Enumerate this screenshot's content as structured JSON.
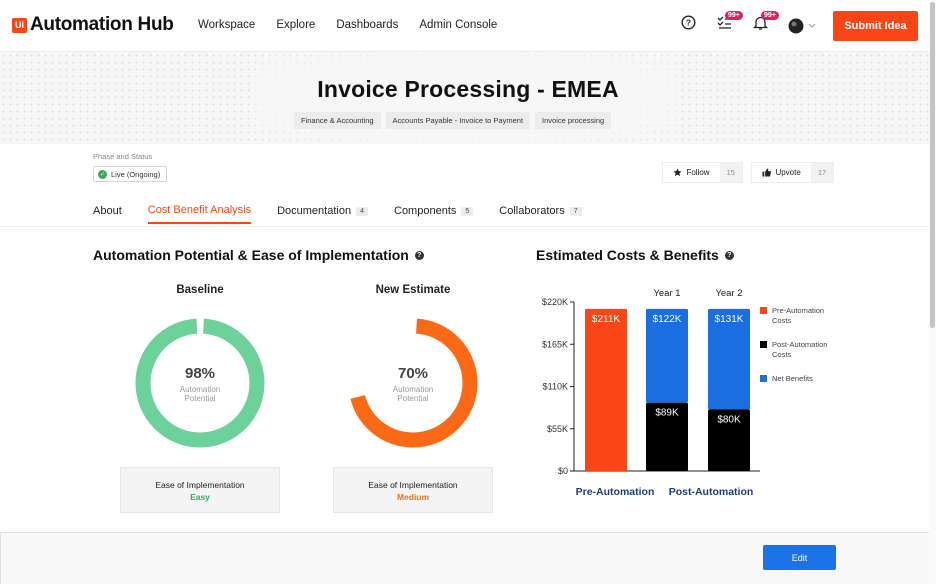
{
  "app": {
    "logo_badge": "Ui",
    "logo_text": "Automation Hub"
  },
  "nav": {
    "items": [
      "Workspace",
      "Explore",
      "Dashboards",
      "Admin Console"
    ]
  },
  "header_icons": {
    "tasks_badge": "99+",
    "notifications_badge": "99+"
  },
  "submit_label": "Submit Idea",
  "page": {
    "title": "Invoice Processing - EMEA",
    "breadcrumbs": [
      "Finance & Accounting",
      "Accounts Payable - Invoice to Payment",
      "Invoice processing"
    ]
  },
  "phase": {
    "label": "Phase and Status",
    "status": "Live (Ongoing)"
  },
  "actions": {
    "follow_label": "Follow",
    "follow_count": "15",
    "upvote_label": "Upvote",
    "upvote_count": "17"
  },
  "tabs": [
    {
      "label": "About",
      "count": ""
    },
    {
      "label": "Cost Benefit Analysis",
      "count": ""
    },
    {
      "label": "Documentation",
      "count": "4"
    },
    {
      "label": "Components",
      "count": "5"
    },
    {
      "label": "Collaborators",
      "count": "7"
    }
  ],
  "potential": {
    "title": "Automation Potential & Ease of Implementation",
    "baseline": {
      "title": "Baseline",
      "pct": "98%",
      "value": 0.98,
      "sub1": "Automation",
      "sub2": "Potential",
      "ease_label": "Ease of Implementation",
      "ease_value": "Easy",
      "color": "#6dd19a",
      "ease_color": "#2fb35a"
    },
    "estimate": {
      "title": "New Estimate",
      "pct": "70%",
      "value": 0.7,
      "sub1": "Automation",
      "sub2": "Potential",
      "ease_label": "Ease of Implementation",
      "ease_value": "Medium",
      "color": "#fa6a16",
      "ease_color": "#e8760e"
    }
  },
  "costs": {
    "title": "Estimated Costs & Benefits"
  },
  "chart_data": {
    "type": "bar",
    "stacked": true,
    "ylim": [
      0,
      220
    ],
    "yticks": [
      "$0",
      "$55K",
      "$110K",
      "$165K",
      "$220K"
    ],
    "ytick_values": [
      0,
      55,
      110,
      165,
      220
    ],
    "column_headers": [
      "",
      "Year 1",
      "Year 2"
    ],
    "group_labels": [
      "Pre-Automation",
      "Post-Automation"
    ],
    "bars": [
      {
        "segments": [
          {
            "series": "Pre-Automation Costs",
            "value": 211,
            "label": "$211K"
          }
        ]
      },
      {
        "segments": [
          {
            "series": "Post-Automation Costs",
            "value": 89,
            "label": "$89K"
          },
          {
            "series": "Net Benefits",
            "value": 122,
            "label": "$122K"
          }
        ]
      },
      {
        "segments": [
          {
            "series": "Post-Automation Costs",
            "value": 80,
            "label": "$80K"
          },
          {
            "series": "Net Benefits",
            "value": 131,
            "label": "$131K"
          }
        ]
      }
    ],
    "legend": [
      {
        "name": "Pre-Automation Costs",
        "color": "#fa4616"
      },
      {
        "name": "Post-Automation Costs",
        "color": "#000000"
      },
      {
        "name": "Net Benefits",
        "color": "#1a6ee0"
      }
    ]
  },
  "footer": {
    "edit_label": "Edit"
  }
}
